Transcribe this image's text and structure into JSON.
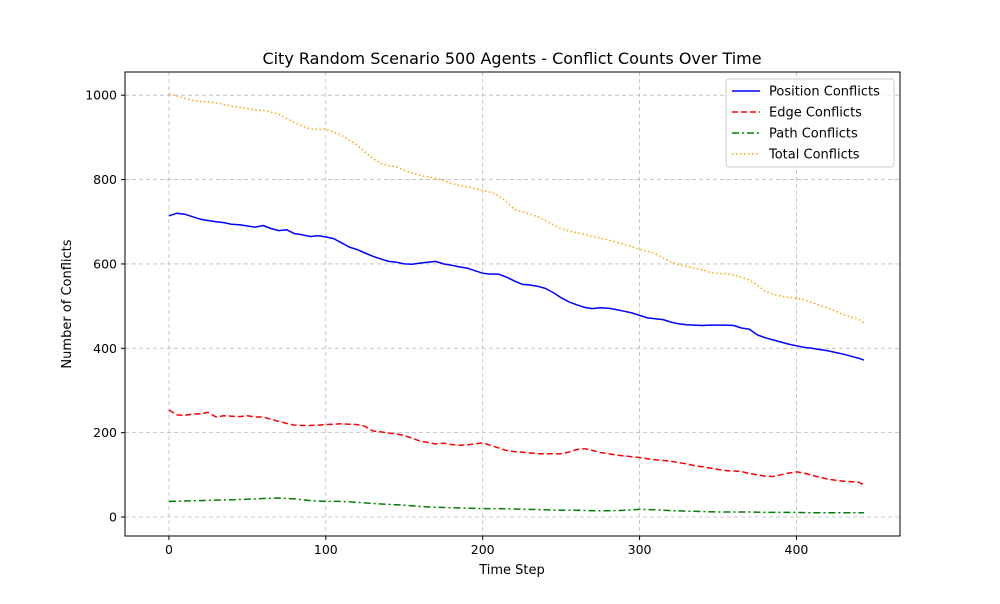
{
  "chart_data": {
    "type": "line",
    "title": "City Random Scenario 500 Agents - Conflict Counts Over Time",
    "xlabel": "Time Step",
    "ylabel": "Number of Conflicts",
    "xlim": [
      -28,
      466
    ],
    "ylim": [
      -45,
      1055
    ],
    "xticks": [
      0,
      100,
      200,
      300,
      400
    ],
    "yticks": [
      0,
      200,
      400,
      600,
      800,
      1000
    ],
    "grid": true,
    "legend": "top-right",
    "series": [
      {
        "name": "Position Conflicts",
        "color": "#0000ff",
        "dash": "solid",
        "x": [
          0,
          5,
          10,
          15,
          20,
          25,
          30,
          35,
          40,
          45,
          50,
          55,
          60,
          65,
          70,
          75,
          80,
          85,
          90,
          95,
          100,
          105,
          110,
          115,
          120,
          125,
          130,
          135,
          140,
          145,
          150,
          155,
          160,
          165,
          170,
          175,
          180,
          185,
          190,
          195,
          200,
          205,
          210,
          215,
          220,
          225,
          230,
          235,
          240,
          245,
          250,
          255,
          260,
          265,
          270,
          275,
          280,
          285,
          290,
          295,
          300,
          305,
          310,
          315,
          320,
          325,
          330,
          335,
          340,
          345,
          350,
          355,
          360,
          365,
          370,
          375,
          380,
          385,
          390,
          395,
          400,
          405,
          410,
          415,
          420,
          425,
          430,
          435,
          440,
          443
        ],
        "y": [
          714,
          720,
          718,
          712,
          706,
          703,
          700,
          698,
          694,
          693,
          690,
          687,
          691,
          684,
          679,
          681,
          672,
          669,
          665,
          667,
          664,
          660,
          650,
          640,
          634,
          626,
          618,
          612,
          606,
          604,
          600,
          599,
          602,
          604,
          606,
          600,
          597,
          593,
          590,
          584,
          578,
          576,
          576,
          569,
          560,
          552,
          550,
          547,
          542,
          532,
          520,
          510,
          503,
          497,
          494,
          496,
          495,
          492,
          488,
          484,
          478,
          472,
          470,
          468,
          462,
          458,
          456,
          455,
          454,
          455,
          455,
          455,
          454,
          448,
          445,
          432,
          425,
          420,
          415,
          410,
          406,
          402,
          400,
          397,
          394,
          390,
          386,
          381,
          376,
          372
        ]
      },
      {
        "name": "Edge Conflicts",
        "color": "#ff0000",
        "dash": "dashed",
        "x": [
          0,
          5,
          10,
          15,
          20,
          25,
          30,
          35,
          40,
          45,
          50,
          55,
          60,
          65,
          70,
          75,
          80,
          85,
          90,
          95,
          100,
          105,
          110,
          115,
          120,
          125,
          130,
          135,
          140,
          145,
          150,
          155,
          160,
          165,
          170,
          175,
          180,
          185,
          190,
          195,
          200,
          205,
          210,
          215,
          220,
          225,
          230,
          235,
          240,
          245,
          250,
          255,
          260,
          265,
          270,
          275,
          280,
          285,
          290,
          295,
          300,
          305,
          310,
          315,
          320,
          325,
          330,
          335,
          340,
          345,
          350,
          355,
          360,
          365,
          370,
          375,
          380,
          385,
          390,
          395,
          400,
          405,
          410,
          415,
          420,
          425,
          430,
          435,
          440,
          443
        ],
        "y": [
          254,
          242,
          241,
          244,
          245,
          248,
          237,
          240,
          239,
          238,
          240,
          237,
          237,
          232,
          227,
          222,
          218,
          217,
          217,
          218,
          219,
          220,
          221,
          220,
          219,
          215,
          204,
          202,
          199,
          197,
          193,
          187,
          180,
          177,
          173,
          175,
          172,
          170,
          171,
          173,
          176,
          170,
          164,
          158,
          155,
          154,
          152,
          150,
          150,
          150,
          150,
          154,
          160,
          162,
          158,
          153,
          150,
          147,
          145,
          143,
          141,
          138,
          136,
          134,
          132,
          129,
          126,
          122,
          119,
          116,
          113,
          110,
          109,
          108,
          103,
          100,
          97,
          96,
          100,
          104,
          107,
          104,
          99,
          94,
          90,
          87,
          85,
          84,
          82,
          76
        ]
      },
      {
        "name": "Path Conflicts",
        "color": "#008000",
        "dash": "dashdot",
        "x": [
          0,
          10,
          20,
          30,
          40,
          50,
          60,
          70,
          80,
          90,
          100,
          110,
          120,
          130,
          140,
          150,
          160,
          170,
          180,
          190,
          200,
          210,
          220,
          230,
          240,
          250,
          260,
          270,
          280,
          290,
          300,
          310,
          320,
          330,
          340,
          350,
          360,
          370,
          380,
          390,
          400,
          410,
          420,
          430,
          443
        ],
        "y": [
          37,
          38,
          39,
          40,
          41,
          42,
          44,
          45,
          43,
          39,
          37,
          37,
          35,
          32,
          30,
          28,
          25,
          23,
          22,
          21,
          20,
          20,
          19,
          18,
          17,
          16,
          16,
          15,
          15,
          16,
          18,
          17,
          15,
          14,
          13,
          12,
          12,
          12,
          11,
          11,
          11,
          10,
          10,
          10,
          10
        ]
      },
      {
        "name": "Total Conflicts",
        "color": "#ffa500",
        "dash": "dotted",
        "x": [
          0,
          5,
          10,
          15,
          20,
          25,
          30,
          35,
          40,
          45,
          50,
          55,
          60,
          65,
          70,
          75,
          80,
          85,
          90,
          95,
          100,
          105,
          110,
          115,
          120,
          125,
          130,
          135,
          140,
          145,
          150,
          155,
          160,
          165,
          170,
          175,
          180,
          185,
          190,
          195,
          200,
          205,
          210,
          215,
          220,
          225,
          230,
          235,
          240,
          245,
          250,
          255,
          260,
          265,
          270,
          275,
          280,
          285,
          290,
          295,
          300,
          305,
          310,
          315,
          320,
          325,
          330,
          335,
          340,
          345,
          350,
          355,
          360,
          365,
          370,
          375,
          380,
          385,
          390,
          395,
          400,
          405,
          410,
          415,
          420,
          425,
          430,
          435,
          440,
          443
        ],
        "y": [
          1003,
          998,
          993,
          988,
          985,
          984,
          982,
          978,
          974,
          971,
          968,
          965,
          964,
          960,
          955,
          945,
          935,
          927,
          920,
          918,
          920,
          912,
          905,
          893,
          882,
          865,
          850,
          838,
          833,
          830,
          822,
          815,
          810,
          806,
          803,
          798,
          791,
          786,
          783,
          779,
          774,
          770,
          762,
          748,
          730,
          724,
          718,
          712,
          703,
          693,
          684,
          678,
          674,
          670,
          665,
          661,
          657,
          652,
          646,
          641,
          635,
          630,
          624,
          614,
          605,
          598,
          594,
          590,
          586,
          580,
          577,
          577,
          574,
          568,
          562,
          550,
          535,
          528,
          524,
          521,
          519,
          515,
          508,
          502,
          495,
          488,
          480,
          474,
          468,
          460
        ]
      }
    ]
  }
}
